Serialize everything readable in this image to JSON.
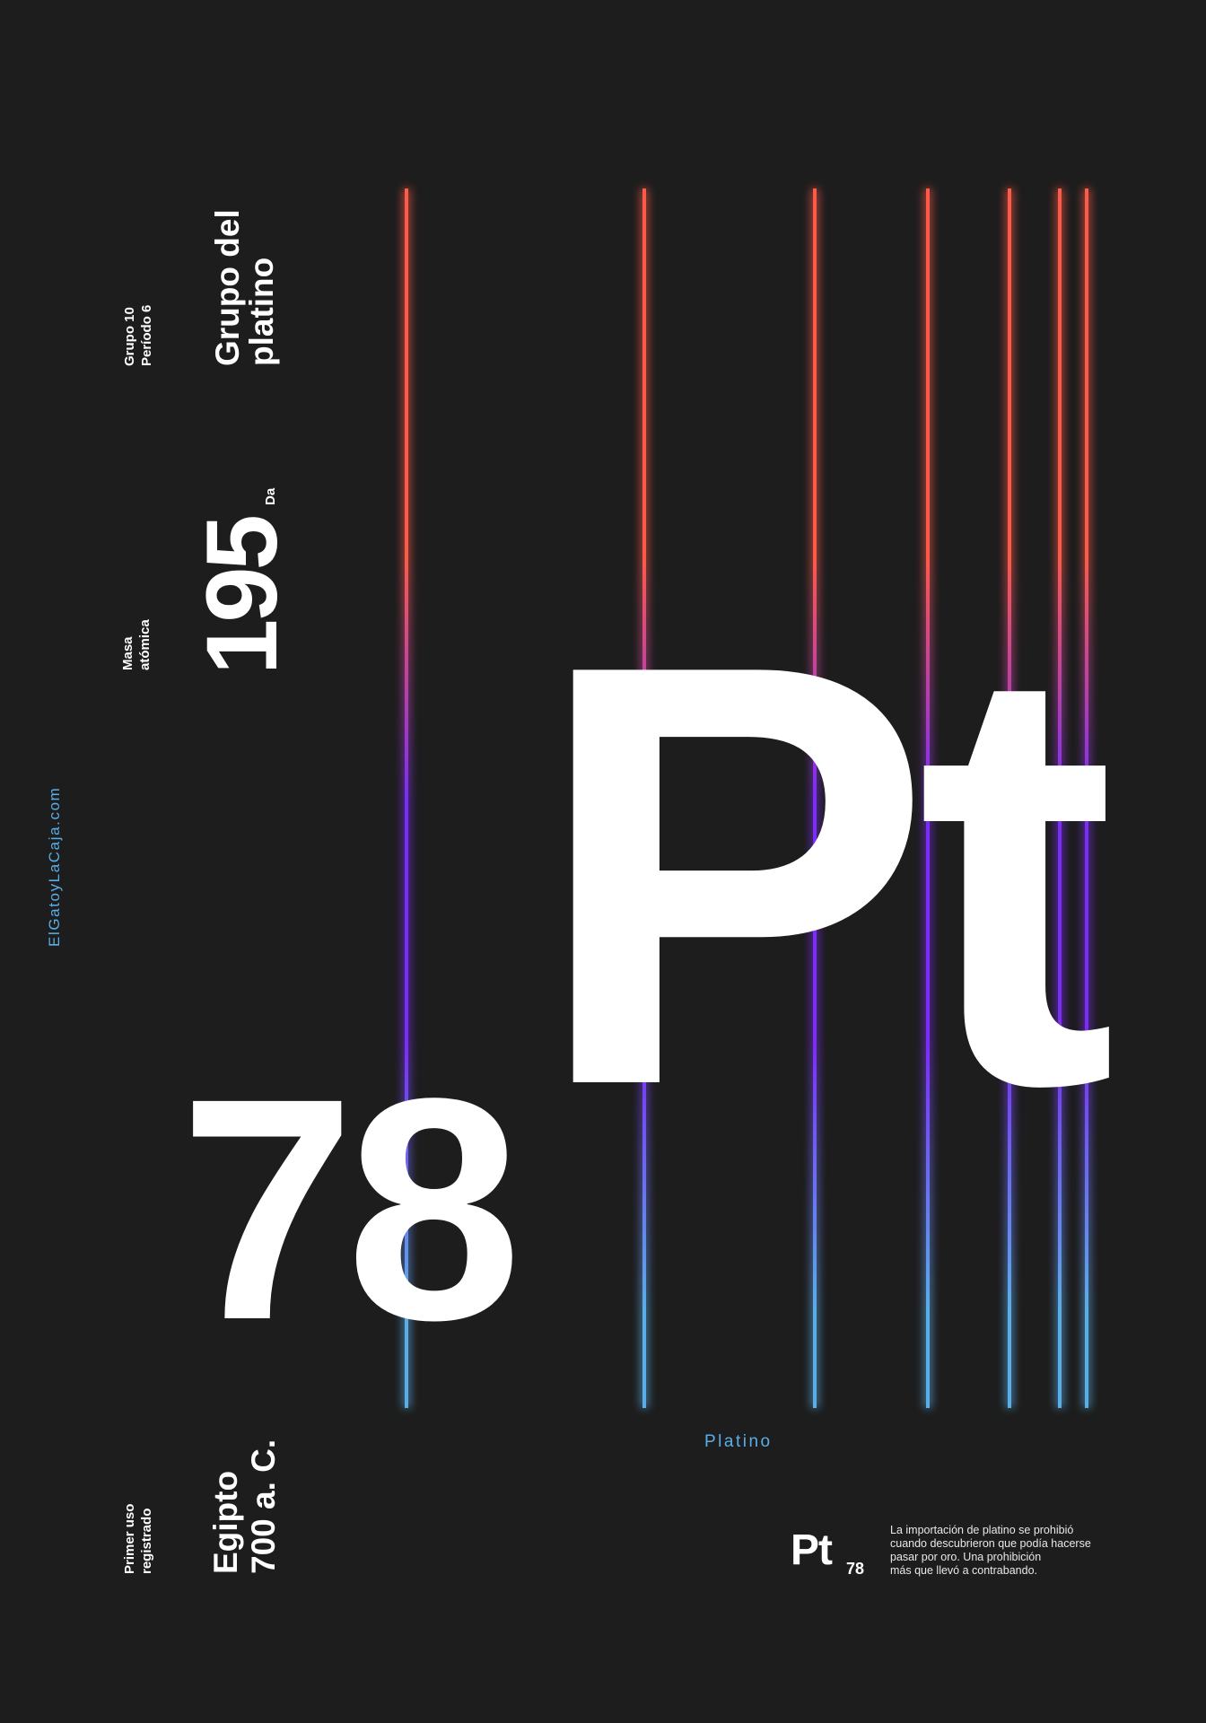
{
  "sidebar": {
    "url": "ElGatoyLaCaja.com"
  },
  "group": {
    "group": "Grupo 10",
    "period": "Período 6",
    "family": [
      "Grupo del",
      "platino"
    ]
  },
  "mass": {
    "label": [
      "Masa",
      "atómica"
    ],
    "value": 195,
    "unit": "Da"
  },
  "element": {
    "symbol": "Pt",
    "number": 78,
    "name": "Platino"
  },
  "first_use": {
    "label": [
      "Primer uso",
      "registrado"
    ],
    "place": "Egipto",
    "date": "700 a. C."
  },
  "footer": {
    "symbol": "Pt",
    "number": 78,
    "text": [
      "La importación de platino se prohibió",
      "cuando descubrieron que podía hacerse",
      "pasar por oro. Una prohibición",
      "más que llevó a contrabando."
    ]
  }
}
